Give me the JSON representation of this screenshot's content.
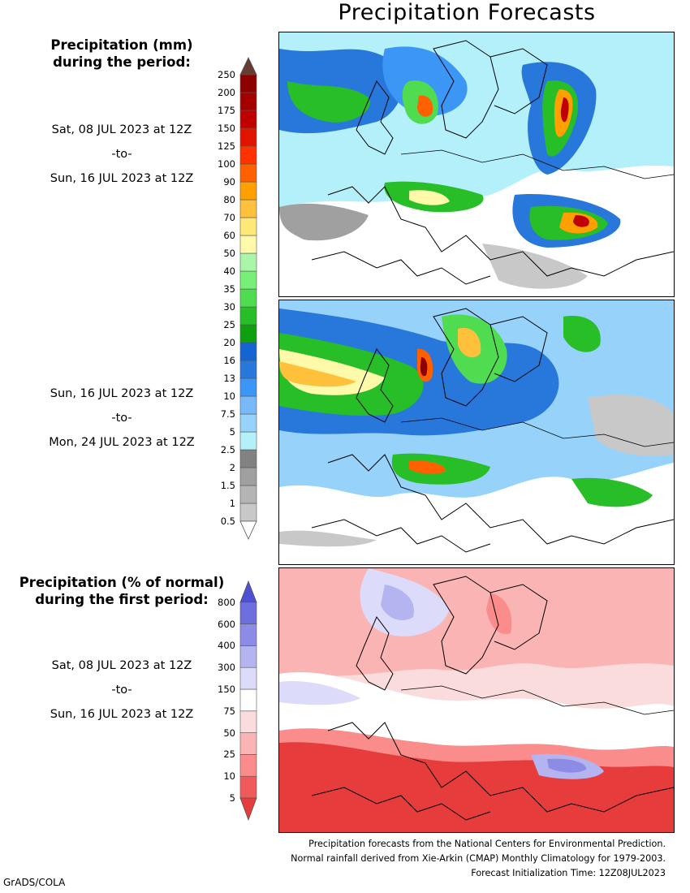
{
  "title": "Precipitation Forecasts",
  "legend_top": {
    "heading_line1": "Precipitation (mm)",
    "heading_line2": "during the period:",
    "levels": [
      "0.5",
      "1",
      "1.5",
      "2",
      "2.5",
      "5",
      "7.5",
      "10",
      "13",
      "16",
      "20",
      "25",
      "30",
      "35",
      "40",
      "50",
      "60",
      "70",
      "80",
      "90",
      "100",
      "125",
      "150",
      "175",
      "200",
      "250"
    ],
    "colors": [
      "#ffffff",
      "#c8c8c8",
      "#b4b4b4",
      "#a0a0a0",
      "#828282",
      "#b4f0fa",
      "#96d2fa",
      "#78b9fa",
      "#3c96f5",
      "#2878dc",
      "#1464d2",
      "#0fa00f",
      "#28be28",
      "#50dc50",
      "#78f078",
      "#aaf5aa",
      "#fffaaa",
      "#ffe878",
      "#ffc03c",
      "#ffa000",
      "#ff6000",
      "#ff3200",
      "#e11400",
      "#c00000",
      "#a50000",
      "#8c0000",
      "#643c32"
    ]
  },
  "period1": {
    "start": "Sat, 08 JUL 2023 at 12Z",
    "sep": "-to-",
    "end": "Sun, 16 JUL 2023 at 12Z"
  },
  "period2": {
    "start": "Sun, 16 JUL 2023 at 12Z",
    "sep": "-to-",
    "end": "Mon, 24 JUL 2023 at 12Z"
  },
  "legend_bottom": {
    "heading_line1": "Precipitation (% of normal)",
    "heading_line2": "during the first period:",
    "levels": [
      "5",
      "10",
      "25",
      "50",
      "75",
      "150",
      "300",
      "400",
      "600",
      "800"
    ],
    "colors": [
      "#e63c3c",
      "#f05a5a",
      "#fa8c8c",
      "#fab4b4",
      "#fadcdc",
      "#ffffff",
      "#dcdcfa",
      "#b4b4f0",
      "#8c8ce6",
      "#6e6ede",
      "#5050d2"
    ]
  },
  "period3": {
    "start": "Sat, 08 JUL 2023 at 12Z",
    "sep": "-to-",
    "end": "Sun, 16 JUL 2023 at 12Z"
  },
  "maps": [
    {
      "name": "precip-map-week1",
      "region": "Europe"
    },
    {
      "name": "precip-map-week2",
      "region": "Europe"
    },
    {
      "name": "percent-normal-map",
      "region": "Europe"
    }
  ],
  "footer": {
    "line1": "Precipitation forecasts from the National Centers for Environmental Prediction.",
    "line2": "Normal rainfall derived from Xie-Arkin (CMAP) Monthly Climatology for 1979-2003.",
    "line3": "Forecast Initialization Time: 12Z08JUL2023"
  },
  "credit": "GrADS/COLA"
}
